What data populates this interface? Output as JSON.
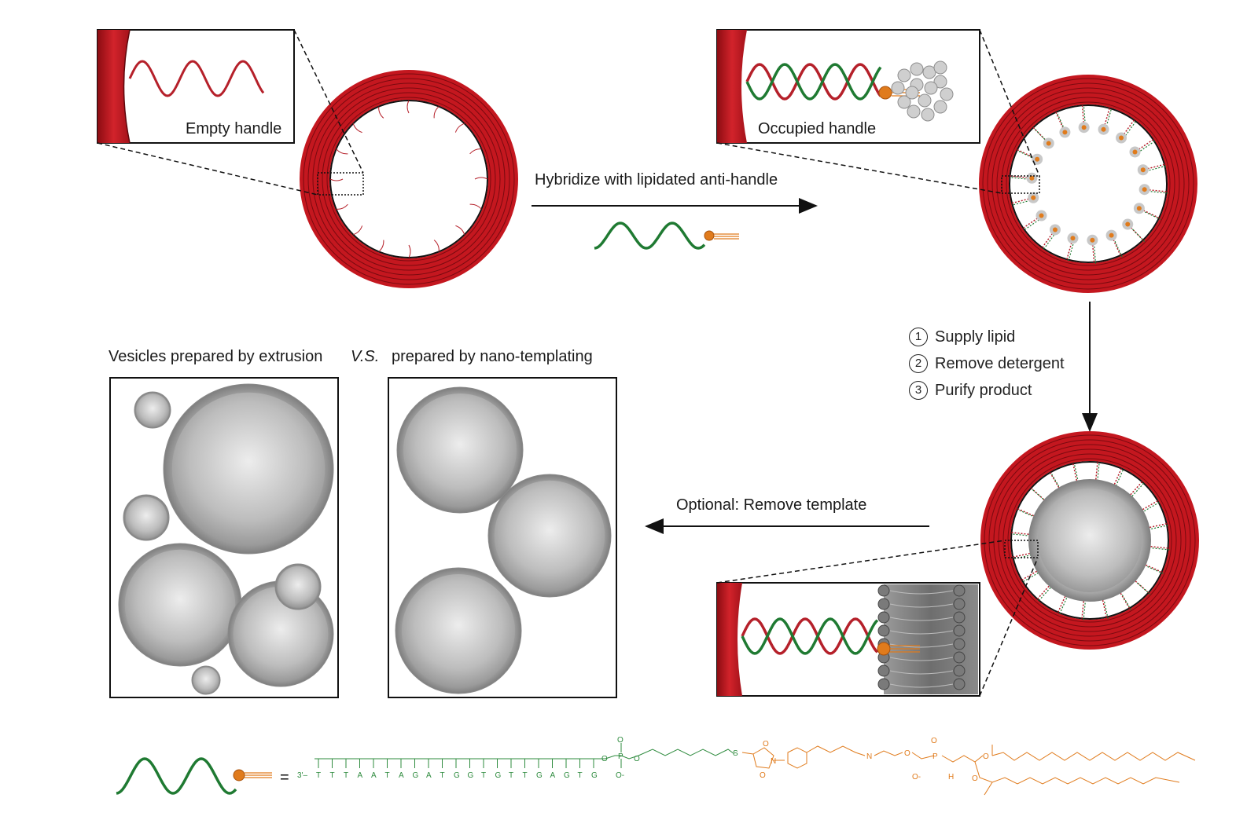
{
  "labels": {
    "empty_handle": "Empty handle",
    "occupied_handle": "Occupied handle",
    "hybridize": "Hybridize with lipidated anti-handle",
    "optional_remove": "Optional: Remove template",
    "extrusion": "Vesicles prepared by extrusion",
    "vs": "V.S.",
    "nanotemplating": "prepared by nano-templating"
  },
  "steps": [
    {
      "num": "1",
      "text": "Supply lipid"
    },
    {
      "num": "2",
      "text": "Remove detergent"
    },
    {
      "num": "3",
      "text": "Purify product"
    }
  ],
  "sequence": {
    "prefix": "3'–",
    "bases": [
      "T",
      "T",
      "T",
      "A",
      "A",
      "T",
      "A",
      "G",
      "A",
      "T",
      "G",
      "G",
      "T",
      "G",
      "T",
      "T",
      "G",
      "A",
      "G",
      "T",
      "G"
    ]
  },
  "chem_atoms": {
    "o": "O",
    "p": "P",
    "s": "S",
    "n": "N",
    "h": "H",
    "o_minus": "O-"
  },
  "colors": {
    "dna_red": "#b5202a",
    "dna_green": "#1f7a32",
    "lipid_orange": "#e07b1c",
    "vesicle_gray": "#8c8c8c",
    "origami_red": "#c4171f"
  }
}
